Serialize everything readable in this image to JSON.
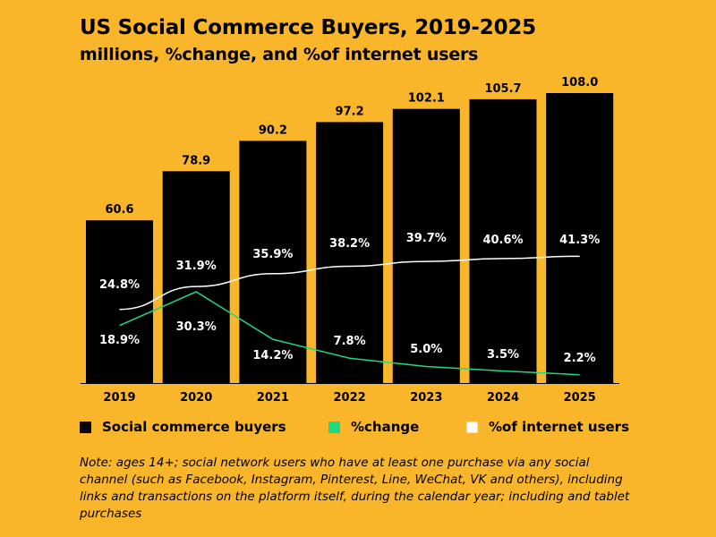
{
  "title": "US Social Commerce Buyers, 2019-2025",
  "subtitle": "millions, %change, and %of internet users",
  "legend": {
    "buyers": "Social commerce buyers",
    "change": "%change",
    "internet": "%of internet users"
  },
  "note": "Note: ages 14+; social network users who have at least one purchase via any social channel (such as Facebook, Instagram, Pinterest, Line, WeChat, VK and others), including links and transactions on the platform itself, during the calendar year; including and tablet purchases",
  "colors": {
    "background": "#f9b62a",
    "bars": "#000000",
    "change_line": "#1ed882",
    "internet_line": "#ffffff"
  },
  "chart_data": {
    "type": "bar",
    "categories": [
      "2019",
      "2020",
      "2021",
      "2022",
      "2023",
      "2024",
      "2025"
    ],
    "series": [
      {
        "name": "Social commerce buyers",
        "type": "bar",
        "values": [
          60.6,
          78.9,
          90.2,
          97.2,
          102.1,
          105.7,
          108.0
        ],
        "labels": [
          "60.6",
          "78.9",
          "90.2",
          "97.2",
          "102.1",
          "105.7",
          "108.0"
        ]
      },
      {
        "name": "%change",
        "type": "line",
        "values": [
          18.9,
          30.3,
          14.2,
          7.8,
          5.0,
          3.5,
          2.2
        ],
        "labels": [
          "18.9%",
          "30.3%",
          "14.2%",
          "7.8%",
          "5.0%",
          "3.5%",
          "2.2%"
        ]
      },
      {
        "name": "%of internet users",
        "type": "line",
        "values": [
          24.8,
          31.9,
          35.9,
          38.2,
          39.7,
          40.6,
          41.3
        ],
        "labels": [
          "24.8%",
          "31.9%",
          "35.9%",
          "38.2%",
          "39.7%",
          "40.6%",
          "41.3%"
        ]
      }
    ],
    "ylim": [
      0,
      110
    ],
    "grid": false,
    "legend_position": "bottom"
  }
}
